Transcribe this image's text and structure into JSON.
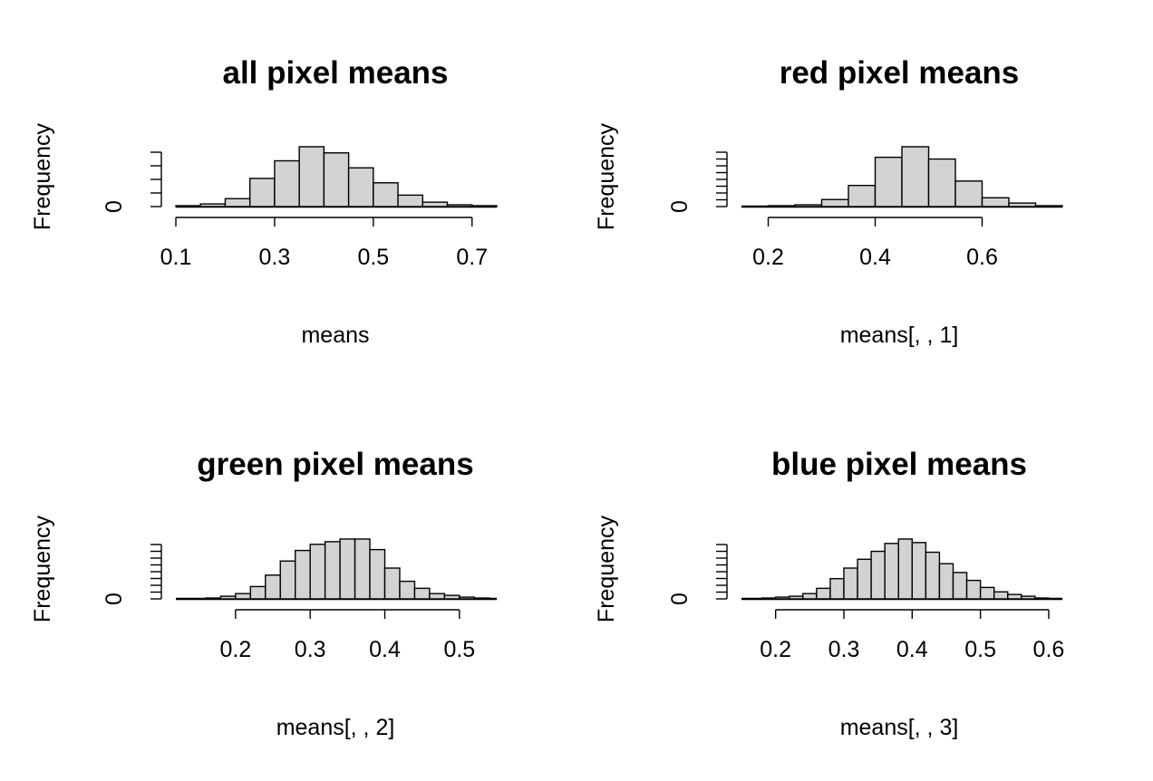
{
  "chart_data": [
    {
      "type": "bar",
      "title": "all pixel means",
      "xlabel": "means",
      "ylabel": "Frequency",
      "xlim": [
        0.1,
        0.75
      ],
      "xticks": [
        0.1,
        0.3,
        0.5,
        0.7
      ],
      "ytick_labels": [
        "0"
      ],
      "ylim": [
        0,
        70
      ],
      "bin_width": 0.05,
      "bins": [
        {
          "x0": 0.1,
          "x1": 0.15,
          "count": 1
        },
        {
          "x0": 0.15,
          "x1": 0.2,
          "count": 3
        },
        {
          "x0": 0.2,
          "x1": 0.25,
          "count": 9
        },
        {
          "x0": 0.25,
          "x1": 0.3,
          "count": 32
        },
        {
          "x0": 0.3,
          "x1": 0.35,
          "count": 52
        },
        {
          "x0": 0.35,
          "x1": 0.4,
          "count": 68
        },
        {
          "x0": 0.4,
          "x1": 0.45,
          "count": 61
        },
        {
          "x0": 0.45,
          "x1": 0.5,
          "count": 44
        },
        {
          "x0": 0.5,
          "x1": 0.55,
          "count": 27
        },
        {
          "x0": 0.55,
          "x1": 0.6,
          "count": 13
        },
        {
          "x0": 0.6,
          "x1": 0.65,
          "count": 5
        },
        {
          "x0": 0.65,
          "x1": 0.7,
          "count": 2
        },
        {
          "x0": 0.7,
          "x1": 0.75,
          "count": 1
        }
      ]
    },
    {
      "type": "bar",
      "title": "red pixel means",
      "xlabel": "means[, , 1]",
      "ylabel": "Frequency",
      "xlim": [
        0.15,
        0.75
      ],
      "xticks": [
        0.2,
        0.4,
        0.6
      ],
      "ytick_labels": [
        "0"
      ],
      "ylim": [
        0,
        70
      ],
      "bin_width": 0.05,
      "bins": [
        {
          "x0": 0.2,
          "x1": 0.25,
          "count": 1
        },
        {
          "x0": 0.25,
          "x1": 0.3,
          "count": 2
        },
        {
          "x0": 0.3,
          "x1": 0.35,
          "count": 8
        },
        {
          "x0": 0.35,
          "x1": 0.4,
          "count": 24
        },
        {
          "x0": 0.4,
          "x1": 0.45,
          "count": 56
        },
        {
          "x0": 0.45,
          "x1": 0.5,
          "count": 68
        },
        {
          "x0": 0.5,
          "x1": 0.55,
          "count": 54
        },
        {
          "x0": 0.55,
          "x1": 0.6,
          "count": 29
        },
        {
          "x0": 0.6,
          "x1": 0.65,
          "count": 10
        },
        {
          "x0": 0.65,
          "x1": 0.7,
          "count": 4
        },
        {
          "x0": 0.7,
          "x1": 0.75,
          "count": 1
        }
      ]
    },
    {
      "type": "bar",
      "title": "green pixel means",
      "xlabel": "means[, , 2]",
      "ylabel": "Frequency",
      "xlim": [
        0.12,
        0.55
      ],
      "xticks": [
        0.2,
        0.3,
        0.4,
        0.5
      ],
      "ytick_labels": [
        "0"
      ],
      "ylim": [
        0,
        70
      ],
      "bin_width": 0.02,
      "bins": [
        {
          "x0": 0.16,
          "x1": 0.18,
          "count": 1
        },
        {
          "x0": 0.18,
          "x1": 0.2,
          "count": 3
        },
        {
          "x0": 0.2,
          "x1": 0.22,
          "count": 6
        },
        {
          "x0": 0.22,
          "x1": 0.24,
          "count": 14
        },
        {
          "x0": 0.24,
          "x1": 0.26,
          "count": 27
        },
        {
          "x0": 0.26,
          "x1": 0.28,
          "count": 43
        },
        {
          "x0": 0.28,
          "x1": 0.3,
          "count": 55
        },
        {
          "x0": 0.3,
          "x1": 0.32,
          "count": 62
        },
        {
          "x0": 0.32,
          "x1": 0.34,
          "count": 65
        },
        {
          "x0": 0.34,
          "x1": 0.36,
          "count": 68
        },
        {
          "x0": 0.36,
          "x1": 0.38,
          "count": 68
        },
        {
          "x0": 0.38,
          "x1": 0.4,
          "count": 56
        },
        {
          "x0": 0.4,
          "x1": 0.42,
          "count": 35
        },
        {
          "x0": 0.42,
          "x1": 0.44,
          "count": 20
        },
        {
          "x0": 0.44,
          "x1": 0.46,
          "count": 12
        },
        {
          "x0": 0.46,
          "x1": 0.48,
          "count": 6
        },
        {
          "x0": 0.48,
          "x1": 0.5,
          "count": 4
        },
        {
          "x0": 0.5,
          "x1": 0.52,
          "count": 2
        },
        {
          "x0": 0.52,
          "x1": 0.54,
          "count": 1
        }
      ]
    },
    {
      "type": "bar",
      "title": "blue pixel means",
      "xlabel": "means[, , 3]",
      "ylabel": "Frequency",
      "xlim": [
        0.15,
        0.62
      ],
      "xticks": [
        0.2,
        0.3,
        0.4,
        0.5,
        0.6
      ],
      "ytick_labels": [
        "0"
      ],
      "ylim": [
        0,
        70
      ],
      "bin_width": 0.02,
      "bins": [
        {
          "x0": 0.18,
          "x1": 0.2,
          "count": 1
        },
        {
          "x0": 0.2,
          "x1": 0.22,
          "count": 2
        },
        {
          "x0": 0.22,
          "x1": 0.24,
          "count": 3
        },
        {
          "x0": 0.24,
          "x1": 0.26,
          "count": 6
        },
        {
          "x0": 0.26,
          "x1": 0.28,
          "count": 12
        },
        {
          "x0": 0.28,
          "x1": 0.3,
          "count": 23
        },
        {
          "x0": 0.3,
          "x1": 0.32,
          "count": 35
        },
        {
          "x0": 0.32,
          "x1": 0.34,
          "count": 45
        },
        {
          "x0": 0.34,
          "x1": 0.36,
          "count": 54
        },
        {
          "x0": 0.36,
          "x1": 0.38,
          "count": 63
        },
        {
          "x0": 0.38,
          "x1": 0.4,
          "count": 68
        },
        {
          "x0": 0.4,
          "x1": 0.42,
          "count": 64
        },
        {
          "x0": 0.42,
          "x1": 0.44,
          "count": 53
        },
        {
          "x0": 0.44,
          "x1": 0.46,
          "count": 40
        },
        {
          "x0": 0.46,
          "x1": 0.48,
          "count": 30
        },
        {
          "x0": 0.48,
          "x1": 0.5,
          "count": 21
        },
        {
          "x0": 0.5,
          "x1": 0.52,
          "count": 13
        },
        {
          "x0": 0.52,
          "x1": 0.54,
          "count": 8
        },
        {
          "x0": 0.54,
          "x1": 0.56,
          "count": 5
        },
        {
          "x0": 0.56,
          "x1": 0.58,
          "count": 3
        },
        {
          "x0": 0.58,
          "x1": 0.6,
          "count": 1
        }
      ]
    }
  ]
}
